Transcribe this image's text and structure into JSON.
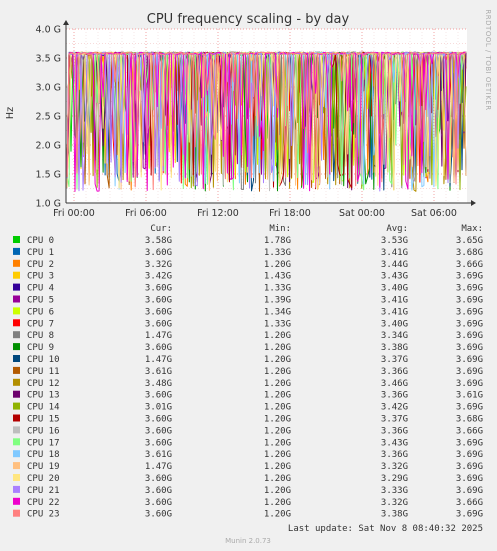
{
  "chart_data": {
    "type": "line",
    "title": "CPU frequency scaling - by day",
    "ylabel": "Hz",
    "side_label": "RRDTOOL / TOBI OETIKER",
    "y_ticks": [
      "1.0 G",
      "1.5 G",
      "2.0 G",
      "2.5 G",
      "3.0 G",
      "3.5 G",
      "4.0 G"
    ],
    "ylim": [
      1.0,
      4.0
    ],
    "x_ticks": [
      "Fri 00:00",
      "Fri 06:00",
      "Fri 12:00",
      "Fri 18:00",
      "Sat 00:00",
      "Sat 06:00"
    ],
    "grid": true,
    "colors": [
      "#00cc00",
      "#0066b3",
      "#ff8000",
      "#ffcc00",
      "#330099",
      "#990099",
      "#ccff00",
      "#ff0000",
      "#808080",
      "#008f00",
      "#00487d",
      "#b35a00",
      "#b38f00",
      "#6b006b",
      "#8fb300",
      "#b30000",
      "#bebebe",
      "#80ff80",
      "#80c9ff",
      "#ffc080",
      "#ffe680",
      "#aa80ff",
      "#ee00cc",
      "#ff8080"
    ],
    "legend_header": {
      "cur": "Cur:",
      "min": "Min:",
      "avg": "Avg:",
      "max": "Max:"
    },
    "series": [
      {
        "name": "CPU 0",
        "cur": "3.58G",
        "min": "1.78G",
        "avg": "3.53G",
        "max": "3.65G"
      },
      {
        "name": "CPU 1",
        "cur": "3.60G",
        "min": "1.33G",
        "avg": "3.41G",
        "max": "3.68G"
      },
      {
        "name": "CPU 2",
        "cur": "3.32G",
        "min": "1.20G",
        "avg": "3.44G",
        "max": "3.66G"
      },
      {
        "name": "CPU 3",
        "cur": "3.42G",
        "min": "1.43G",
        "avg": "3.43G",
        "max": "3.69G"
      },
      {
        "name": "CPU 4",
        "cur": "3.60G",
        "min": "1.33G",
        "avg": "3.40G",
        "max": "3.69G"
      },
      {
        "name": "CPU 5",
        "cur": "3.60G",
        "min": "1.39G",
        "avg": "3.41G",
        "max": "3.69G"
      },
      {
        "name": "CPU 6",
        "cur": "3.60G",
        "min": "1.34G",
        "avg": "3.41G",
        "max": "3.69G"
      },
      {
        "name": "CPU 7",
        "cur": "3.60G",
        "min": "1.33G",
        "avg": "3.40G",
        "max": "3.69G"
      },
      {
        "name": "CPU 8",
        "cur": "1.47G",
        "min": "1.20G",
        "avg": "3.34G",
        "max": "3.69G"
      },
      {
        "name": "CPU 9",
        "cur": "3.60G",
        "min": "1.20G",
        "avg": "3.38G",
        "max": "3.69G"
      },
      {
        "name": "CPU 10",
        "cur": "1.47G",
        "min": "1.20G",
        "avg": "3.37G",
        "max": "3.69G"
      },
      {
        "name": "CPU 11",
        "cur": "3.61G",
        "min": "1.20G",
        "avg": "3.36G",
        "max": "3.69G"
      },
      {
        "name": "CPU 12",
        "cur": "3.48G",
        "min": "1.20G",
        "avg": "3.46G",
        "max": "3.69G"
      },
      {
        "name": "CPU 13",
        "cur": "3.60G",
        "min": "1.20G",
        "avg": "3.36G",
        "max": "3.61G"
      },
      {
        "name": "CPU 14",
        "cur": "3.01G",
        "min": "1.20G",
        "avg": "3.42G",
        "max": "3.69G"
      },
      {
        "name": "CPU 15",
        "cur": "3.60G",
        "min": "1.20G",
        "avg": "3.37G",
        "max": "3.68G"
      },
      {
        "name": "CPU 16",
        "cur": "3.60G",
        "min": "1.20G",
        "avg": "3.36G",
        "max": "3.66G"
      },
      {
        "name": "CPU 17",
        "cur": "3.60G",
        "min": "1.20G",
        "avg": "3.43G",
        "max": "3.69G"
      },
      {
        "name": "CPU 18",
        "cur": "3.61G",
        "min": "1.20G",
        "avg": "3.36G",
        "max": "3.69G"
      },
      {
        "name": "CPU 19",
        "cur": "1.47G",
        "min": "1.20G",
        "avg": "3.32G",
        "max": "3.69G"
      },
      {
        "name": "CPU 20",
        "cur": "3.60G",
        "min": "1.20G",
        "avg": "3.29G",
        "max": "3.69G"
      },
      {
        "name": "CPU 21",
        "cur": "3.60G",
        "min": "1.20G",
        "avg": "3.33G",
        "max": "3.69G"
      },
      {
        "name": "CPU 22",
        "cur": "3.60G",
        "min": "1.20G",
        "avg": "3.32G",
        "max": "3.66G"
      },
      {
        "name": "CPU 23",
        "cur": "3.60G",
        "min": "1.20G",
        "avg": "3.38G",
        "max": "3.69G"
      }
    ],
    "last_update": "Last update: Sat Nov  8 08:40:32 2025",
    "footer": "Munin 2.0.73"
  }
}
